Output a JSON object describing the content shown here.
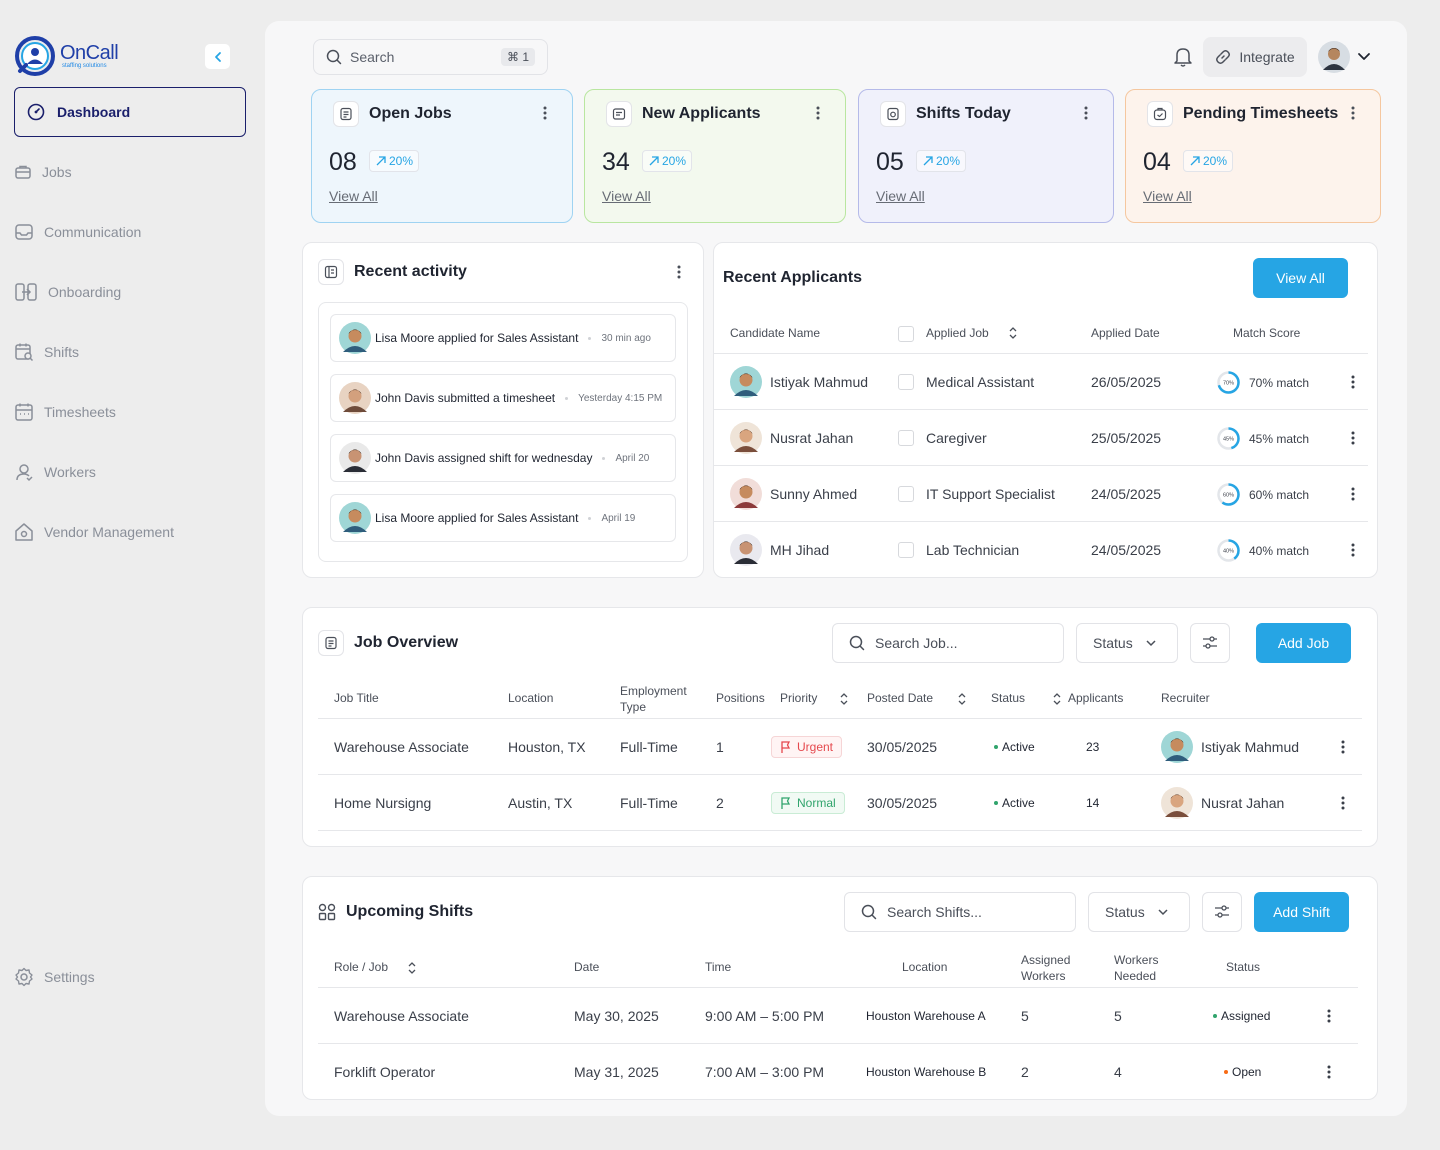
{
  "brand": {
    "name": "OnCall",
    "tagline": "staffing solutions"
  },
  "sidebar": {
    "active": {
      "label": "Dashboard",
      "icon": "dashboard-icon"
    },
    "items": [
      {
        "label": "Jobs",
        "icon": "briefcase-icon"
      },
      {
        "label": "Communication",
        "icon": "inbox-icon"
      },
      {
        "label": "Onboarding",
        "icon": "onboarding-icon"
      },
      {
        "label": "Shifts",
        "icon": "shifts-icon"
      },
      {
        "label": "Timesheets",
        "icon": "calendar-icon"
      },
      {
        "label": "Workers",
        "icon": "user-icon"
      },
      {
        "label": "Vendor Management",
        "icon": "home-icon"
      }
    ],
    "settings": {
      "label": "Settings",
      "icon": "gear-icon"
    }
  },
  "topbar": {
    "search_placeholder": "Search",
    "shortcut": "⌘ 1",
    "integrate_label": "Integrate"
  },
  "stats": [
    {
      "title": "Open Jobs",
      "value": "08",
      "change": "20%",
      "link": "View All",
      "bg": "#eef6fc",
      "border": "#9fd3f2"
    },
    {
      "title": "New Applicants",
      "value": "34",
      "change": "20%",
      "link": "View All",
      "bg": "#f3f9ee",
      "border": "#b9e6a0"
    },
    {
      "title": "Shifts Today",
      "value": "05",
      "change": "20%",
      "link": "View All",
      "bg": "#f0f1fb",
      "border": "#b5bae9"
    },
    {
      "title": "Pending Timesheets",
      "value": "04",
      "change": "20%",
      "link": "View All",
      "bg": "#fdf3ec",
      "border": "#f5c79f"
    }
  ],
  "recent_activity": {
    "title": "Recent activity",
    "items": [
      {
        "text": "Lisa Moore applied for Sales Assistant",
        "time": "30 min ago"
      },
      {
        "text": "John Davis submitted a timesheet",
        "time": "Yesterday 4:15 PM"
      },
      {
        "text": "John Davis assigned shift for wednesday",
        "time": "April 20"
      },
      {
        "text": "Lisa Moore applied for Sales Assistant",
        "time": "April 19"
      }
    ]
  },
  "recent_applicants": {
    "title": "Recent Applicants",
    "view_all": "View All",
    "columns": [
      "Candidate Name",
      "Applied Job",
      "Applied Date",
      "Match Score"
    ],
    "rows": [
      {
        "name": "Istiyak Mahmud",
        "job": "Medical Assistant",
        "date": "26/05/2025",
        "score": "70%",
        "match": "70% match",
        "pct": 0.7
      },
      {
        "name": "Nusrat Jahan",
        "job": "Caregiver",
        "date": "25/05/2025",
        "score": "45%",
        "match": "45% match",
        "pct": 0.45
      },
      {
        "name": "Sunny Ahmed",
        "job": "IT Support Specialist",
        "date": "24/05/2025",
        "score": "60%",
        "match": "60% match",
        "pct": 0.6
      },
      {
        "name": "MH Jihad",
        "job": "Lab Technician",
        "date": "24/05/2025",
        "score": "40%",
        "match": "40% match",
        "pct": 0.4
      }
    ]
  },
  "job_overview": {
    "title": "Job Overview",
    "search_placeholder": "Search Job...",
    "status_label": "Status",
    "add_label": "Add Job",
    "columns": [
      "Job Title",
      "Location",
      "Employment Type",
      "Positions",
      "Priority",
      "Posted Date",
      "Status",
      "Applicants",
      "Recruiter"
    ],
    "rows": [
      {
        "title": "Warehouse Associate",
        "location": "Houston, TX",
        "type": "Full-Time",
        "positions": "1",
        "priority": "Urgent",
        "posted": "30/05/2025",
        "status": "Active",
        "applicants": "23",
        "recruiter": "Istiyak Mahmud"
      },
      {
        "title": "Home Nursigng",
        "location": "Austin, TX",
        "type": "Full-Time",
        "positions": "2",
        "priority": "Normal",
        "posted": "30/05/2025",
        "status": "Active",
        "applicants": "14",
        "recruiter": "Nusrat Jahan"
      }
    ]
  },
  "upcoming_shifts": {
    "title": "Upcoming Shifts",
    "search_placeholder": "Search Shifts...",
    "status_label": "Status",
    "add_label": "Add Shift",
    "columns": [
      "Role / Job",
      "Date",
      "Time",
      "Location",
      "Assigned Workers",
      "Workers Needed",
      "Status"
    ],
    "rows": [
      {
        "role": "Warehouse Associate",
        "date": "May 30, 2025",
        "time": "9:00 AM – 5:00 PM",
        "location": "Houston Warehouse A",
        "assigned": "5",
        "needed": "5",
        "status": "Assigned"
      },
      {
        "role": "Forklift Operator",
        "date": "May 31, 2025",
        "time": "7:00 AM – 3:00 PM",
        "location": "Houston Warehouse B",
        "assigned": "2",
        "needed": "4",
        "status": "Open"
      }
    ]
  },
  "colors": {
    "accent": "#26a5e4",
    "active_nav": "#1a1f6b",
    "urgent": "#e5484d",
    "normal": "#30a46c",
    "open": "#f76b15"
  }
}
